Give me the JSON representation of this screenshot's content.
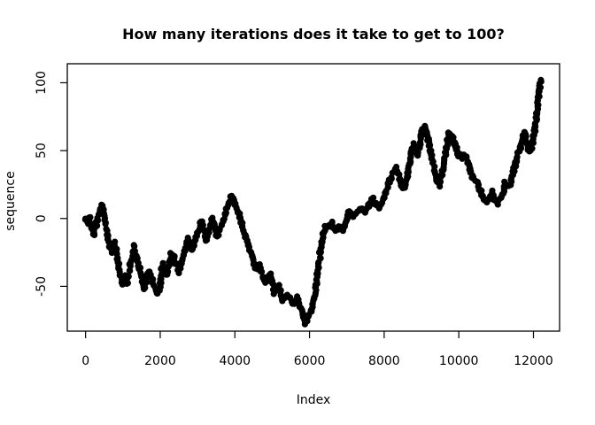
{
  "figure": {
    "background": "#ffffff",
    "foreground": "#000000"
  },
  "chart_data": {
    "type": "scatter",
    "title": "How many iterations does it take to get to 100?",
    "xlabel": "Index",
    "ylabel": "sequence",
    "x_ticks": [
      0,
      2000,
      4000,
      6000,
      8000,
      10000,
      12000
    ],
    "y_ticks": [
      -50,
      0,
      50,
      100
    ],
    "xlim": [
      -490,
      12700
    ],
    "ylim": [
      -83,
      114
    ],
    "grid": false,
    "legend": "none",
    "point_style": "open-circle",
    "point_color": "#000000",
    "description": "Random walk of ~12200 steps plotted as dense black circles, starting near 0, dipping to about -77 near index 5900, ending at 102 near index 12200",
    "series": [
      {
        "name": "sequence",
        "keypoints": [
          [
            0,
            0
          ],
          [
            60,
            -4
          ],
          [
            110,
            2
          ],
          [
            160,
            -6
          ],
          [
            220,
            -12
          ],
          [
            300,
            -4
          ],
          [
            380,
            6
          ],
          [
            450,
            11
          ],
          [
            520,
            -1
          ],
          [
            600,
            -15
          ],
          [
            700,
            -25
          ],
          [
            780,
            -18
          ],
          [
            880,
            -34
          ],
          [
            980,
            -48
          ],
          [
            1040,
            -43
          ],
          [
            1100,
            -49
          ],
          [
            1180,
            -38
          ],
          [
            1280,
            -21
          ],
          [
            1400,
            -32
          ],
          [
            1500,
            -43
          ],
          [
            1580,
            -51
          ],
          [
            1700,
            -38
          ],
          [
            1800,
            -47
          ],
          [
            1920,
            -56
          ],
          [
            2000,
            -49
          ],
          [
            2060,
            -33
          ],
          [
            2180,
            -41
          ],
          [
            2300,
            -25
          ],
          [
            2400,
            -31
          ],
          [
            2510,
            -39
          ],
          [
            2620,
            -27
          ],
          [
            2740,
            -15
          ],
          [
            2860,
            -24
          ],
          [
            2960,
            -14
          ],
          [
            3100,
            -2
          ],
          [
            3240,
            -17
          ],
          [
            3400,
            0
          ],
          [
            3520,
            -13
          ],
          [
            3650,
            -5
          ],
          [
            3780,
            7
          ],
          [
            3880,
            15
          ],
          [
            3950,
            16
          ],
          [
            4050,
            7
          ],
          [
            4130,
            3
          ],
          [
            4190,
            -5
          ],
          [
            4280,
            -13
          ],
          [
            4400,
            -23
          ],
          [
            4470,
            -28
          ],
          [
            4560,
            -37
          ],
          [
            4650,
            -35
          ],
          [
            4760,
            -43
          ],
          [
            4830,
            -46
          ],
          [
            4940,
            -41
          ],
          [
            5060,
            -54
          ],
          [
            5170,
            -50
          ],
          [
            5290,
            -60
          ],
          [
            5410,
            -56
          ],
          [
            5570,
            -63
          ],
          [
            5690,
            -58
          ],
          [
            5790,
            -69
          ],
          [
            5870,
            -77
          ],
          [
            5960,
            -73
          ],
          [
            6070,
            -66
          ],
          [
            6160,
            -53
          ],
          [
            6240,
            -36
          ],
          [
            6310,
            -20
          ],
          [
            6400,
            -8
          ],
          [
            6480,
            -5
          ],
          [
            6590,
            -3
          ],
          [
            6700,
            -9
          ],
          [
            6800,
            -5
          ],
          [
            6900,
            -8
          ],
          [
            6990,
            -2
          ],
          [
            7060,
            6
          ],
          [
            7170,
            2
          ],
          [
            7300,
            5
          ],
          [
            7400,
            8
          ],
          [
            7470,
            5
          ],
          [
            7600,
            10
          ],
          [
            7700,
            14
          ],
          [
            7780,
            11
          ],
          [
            7870,
            7
          ],
          [
            7940,
            11
          ],
          [
            8040,
            19
          ],
          [
            8130,
            27
          ],
          [
            8230,
            33
          ],
          [
            8320,
            37
          ],
          [
            8400,
            30
          ],
          [
            8470,
            24
          ],
          [
            8540,
            22
          ],
          [
            8610,
            28
          ],
          [
            8680,
            41
          ],
          [
            8740,
            50
          ],
          [
            8800,
            55
          ],
          [
            8860,
            47
          ],
          [
            8920,
            48
          ],
          [
            8980,
            60
          ],
          [
            9040,
            66
          ],
          [
            9100,
            68
          ],
          [
            9160,
            61
          ],
          [
            9220,
            52
          ],
          [
            9280,
            45
          ],
          [
            9340,
            38
          ],
          [
            9400,
            30
          ],
          [
            9470,
            24
          ],
          [
            9550,
            33
          ],
          [
            9620,
            44
          ],
          [
            9690,
            55
          ],
          [
            9740,
            64
          ],
          [
            9800,
            62
          ],
          [
            9860,
            59
          ],
          [
            9920,
            52
          ],
          [
            9980,
            48
          ],
          [
            10050,
            45
          ],
          [
            10120,
            46
          ],
          [
            10200,
            45
          ],
          [
            10270,
            41
          ],
          [
            10330,
            33
          ],
          [
            10410,
            29
          ],
          [
            10500,
            26
          ],
          [
            10570,
            20
          ],
          [
            10650,
            16
          ],
          [
            10740,
            12
          ],
          [
            10820,
            15
          ],
          [
            10890,
            20
          ],
          [
            10960,
            13
          ],
          [
            11030,
            11
          ],
          [
            11100,
            14
          ],
          [
            11170,
            18
          ],
          [
            11240,
            26
          ],
          [
            11310,
            23
          ],
          [
            11380,
            25
          ],
          [
            11450,
            32
          ],
          [
            11510,
            40
          ],
          [
            11570,
            46
          ],
          [
            11640,
            51
          ],
          [
            11700,
            57
          ],
          [
            11750,
            64
          ],
          [
            11800,
            58
          ],
          [
            11860,
            52
          ],
          [
            11910,
            49
          ],
          [
            11970,
            55
          ],
          [
            12030,
            64
          ],
          [
            12080,
            74
          ],
          [
            12120,
            86
          ],
          [
            12160,
            95
          ],
          [
            12200,
            102
          ]
        ]
      }
    ]
  }
}
